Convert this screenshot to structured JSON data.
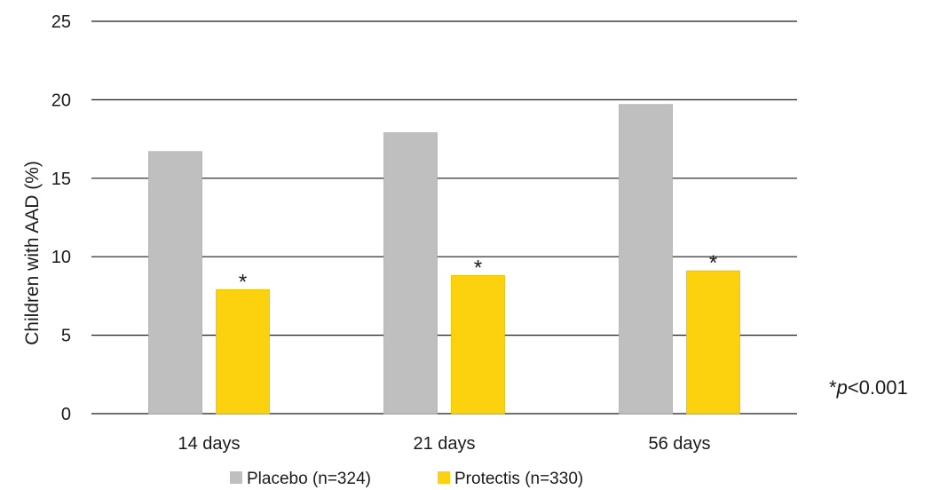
{
  "chart_data": {
    "type": "bar",
    "title": "",
    "ylabel": "Children with AAD (%)",
    "xlabel": "",
    "ylim": [
      0,
      25
    ],
    "yticks": [
      0,
      5,
      10,
      15,
      20,
      25
    ],
    "grid": true,
    "legend_position": "bottom",
    "categories": [
      "14 days",
      "21 days",
      "56 days"
    ],
    "series": [
      {
        "name": "Placebo (n=324)",
        "color": "#bfbfbf",
        "values": [
          16.7,
          17.9,
          19.7
        ],
        "annotations": [
          "",
          "",
          ""
        ]
      },
      {
        "name": "Protectis (n=330)",
        "color": "#fcd20f",
        "values": [
          7.9,
          8.8,
          9.1
        ],
        "annotations": [
          "*",
          "*",
          "*"
        ]
      }
    ],
    "footnote": {
      "prefix": "*",
      "italic": "p",
      "suffix": "<0.001"
    }
  }
}
